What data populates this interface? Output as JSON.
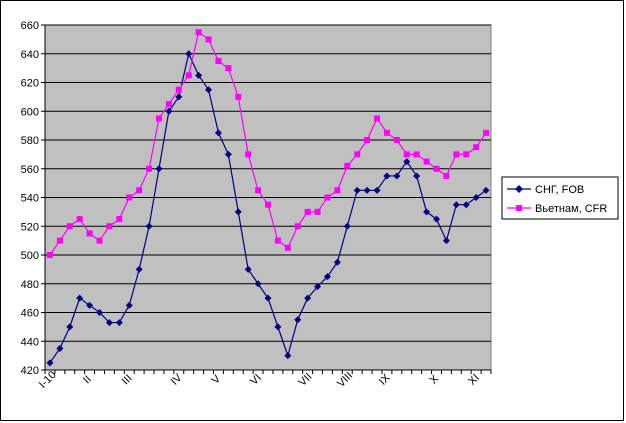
{
  "chart_data": {
    "type": "line",
    "title": "",
    "xlabel": "",
    "ylabel": "",
    "ylim": [
      420,
      660
    ],
    "y_ticks": [
      420,
      440,
      460,
      480,
      500,
      520,
      540,
      560,
      580,
      600,
      620,
      640,
      660
    ],
    "x_tick_labels": [
      {
        "label": "I-10",
        "index": 0
      },
      {
        "label": "II",
        "index": 4
      },
      {
        "label": "III",
        "index": 8
      },
      {
        "label": "IV",
        "index": 13
      },
      {
        "label": "V",
        "index": 17
      },
      {
        "label": "VI",
        "index": 21
      },
      {
        "label": "VII",
        "index": 26
      },
      {
        "label": "VIII",
        "index": 30
      },
      {
        "label": "IX",
        "index": 34
      },
      {
        "label": "X",
        "index": 39
      },
      {
        "label": "XI",
        "index": 43
      }
    ],
    "grid": true,
    "legend_position": "right",
    "plot_background": "#c0c0c0",
    "series": [
      {
        "name": "СНГ, FOB",
        "color": "#000080",
        "marker": "diamond",
        "values": [
          425,
          435,
          450,
          470,
          465,
          460,
          453,
          453,
          465,
          490,
          520,
          560,
          600,
          610,
          640,
          625,
          615,
          585,
          570,
          530,
          490,
          480,
          470,
          450,
          430,
          455,
          470,
          478,
          485,
          495,
          520,
          545,
          545,
          545,
          555,
          555,
          565,
          555,
          530,
          525,
          510,
          535,
          535,
          540,
          545
        ]
      },
      {
        "name": "Вьетнам, CFR",
        "color": "#ff00ff",
        "marker": "square",
        "values": [
          500,
          510,
          520,
          525,
          515,
          510,
          520,
          525,
          540,
          545,
          560,
          595,
          605,
          615,
          625,
          655,
          650,
          635,
          630,
          610,
          570,
          545,
          535,
          510,
          505,
          520,
          530,
          530,
          540,
          545,
          562,
          570,
          580,
          595,
          585,
          580,
          570,
          570,
          565,
          560,
          555,
          570,
          570,
          575,
          585
        ]
      }
    ]
  }
}
